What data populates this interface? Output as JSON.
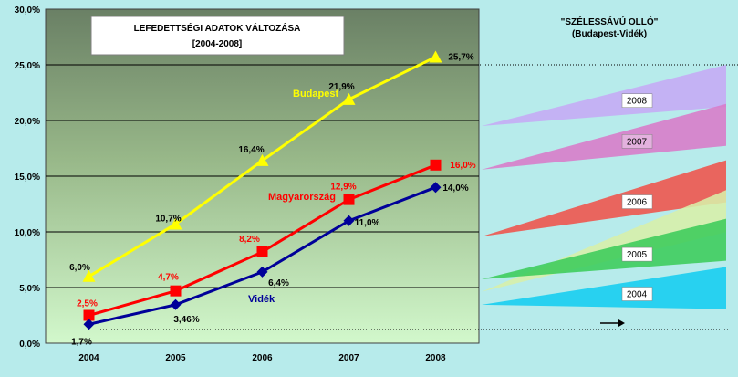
{
  "chart_data": [
    {
      "type": "line",
      "title": "LEFEDETTSÉGI ADATOK VÁLTOZÁSA",
      "subtitle": "[2004-2008]",
      "xlabel": "",
      "ylabel": "",
      "categories": [
        "2004",
        "2005",
        "2006",
        "2007",
        "2008"
      ],
      "y_ticks": [
        "0,0%",
        "5,0%",
        "10,0%",
        "15,0%",
        "20,0%",
        "25,0%",
        "30,0%"
      ],
      "ylim": [
        0,
        30
      ],
      "grid": true,
      "legend": "none",
      "series": [
        {
          "name": "Budapest",
          "values": [
            6.0,
            10.7,
            16.4,
            21.9,
            25.7
          ],
          "labels": [
            "6,0%",
            "10,7%",
            "16,4%",
            "21,9%",
            "25,7%"
          ],
          "color": "#ffff00",
          "marker": "triangle"
        },
        {
          "name": "Magyarország",
          "values": [
            2.5,
            4.7,
            8.2,
            12.9,
            16.0
          ],
          "labels": [
            "2,5%",
            "4,7%",
            "8,2%",
            "12,9%",
            "16,0%"
          ],
          "color": "#ff0000",
          "marker": "square"
        },
        {
          "name": "Vidék",
          "values": [
            1.7,
            3.46,
            6.4,
            11.0,
            14.0
          ],
          "labels": [
            "1,7%",
            "3,46%",
            "6,4%",
            "11,0%",
            "14,0%"
          ],
          "color": "#000099",
          "marker": "diamond"
        }
      ]
    },
    {
      "type": "diagram",
      "title": "\"SZÉLESSÁVÚ OLLÓ\"",
      "subtitle": "(Budapest-Vidék)",
      "bands": [
        {
          "year": "2008",
          "color": "#c6aaf5",
          "budapest": 25.7,
          "videk": 14.0
        },
        {
          "year": "2007",
          "color": "#d97ac8",
          "budapest": 21.9,
          "videk": 11.0
        },
        {
          "year": "2006",
          "color": "#f0524a",
          "budapest": 16.4,
          "videk": 6.4
        },
        {
          "year": "2005",
          "color": "#3ccc5a",
          "budapest": 10.7,
          "videk": 3.46
        },
        {
          "year": "2004",
          "color": "#14cdf0",
          "budapest": 6.0,
          "videk": 1.7
        }
      ],
      "extra_bands": [
        {
          "color": "#d8efa8",
          "budapest": 13.5,
          "videk": 2.6
        }
      ]
    }
  ]
}
